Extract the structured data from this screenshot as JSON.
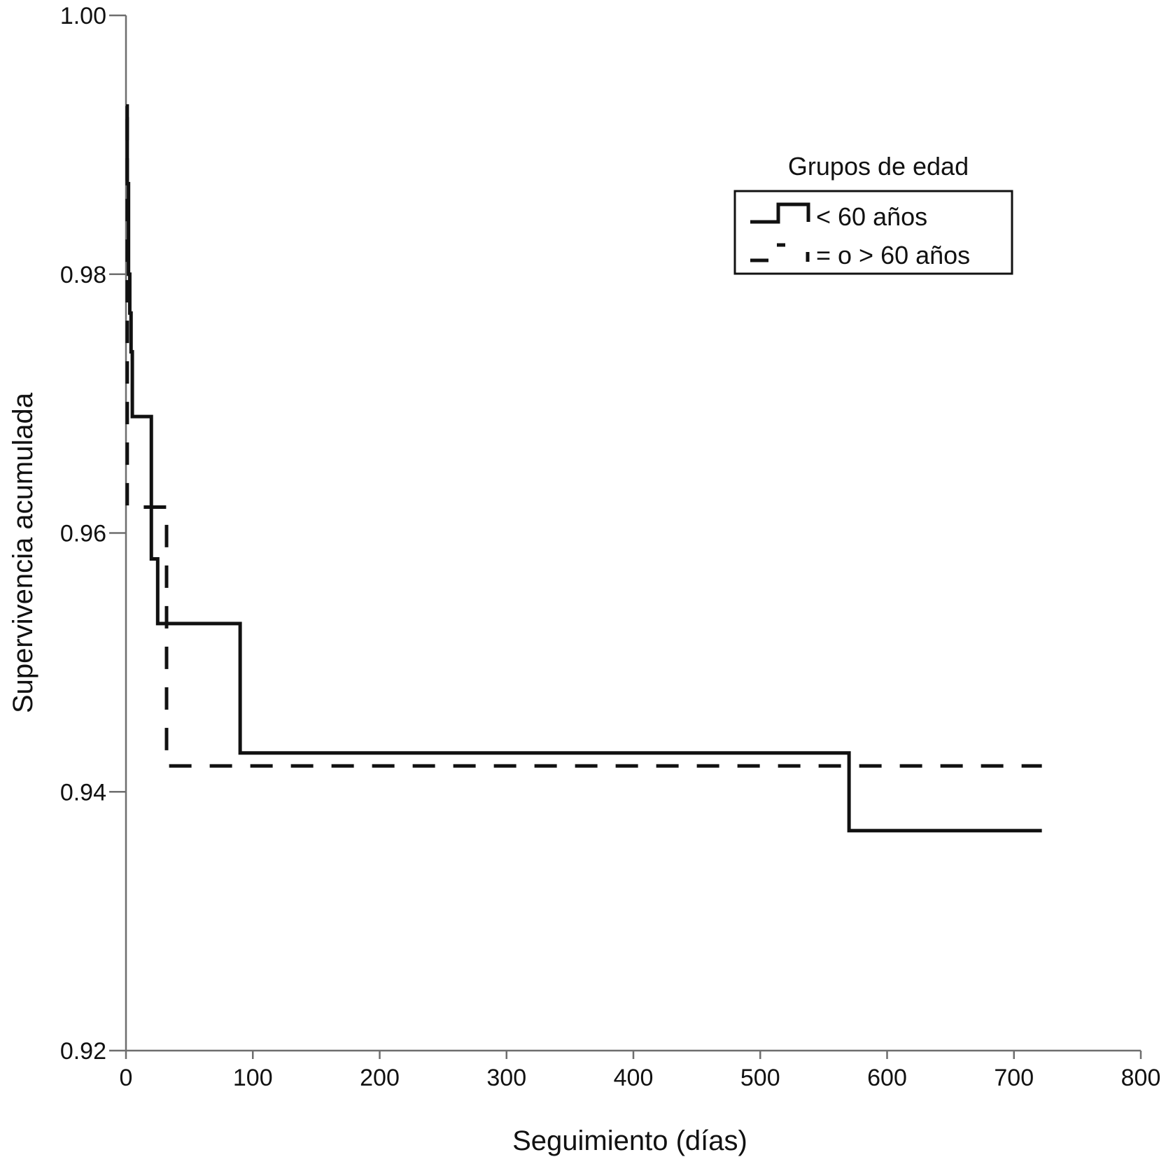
{
  "chart_data": {
    "type": "line",
    "step": true,
    "xlabel": "Seguimiento (días)",
    "ylabel": "Supervivencia acumulada",
    "xlim": [
      0,
      800
    ],
    "ylim": [
      0.92,
      1.0
    ],
    "x_ticks": [
      0,
      100,
      200,
      300,
      400,
      500,
      600,
      700,
      800
    ],
    "y_ticks": [
      0.92,
      0.94,
      0.96,
      0.98,
      1.0
    ],
    "x_tick_labels": [
      "0",
      "100",
      "200",
      "300",
      "400",
      "500",
      "600",
      "700",
      "800"
    ],
    "y_tick_labels": [
      "0.92",
      "0.94",
      "0.96",
      "0.98",
      "1.00"
    ],
    "grid": false,
    "legend": {
      "title": "Grupos de edad",
      "placement": "top-right"
    },
    "series": [
      {
        "name": "< 60 años",
        "style": "solid",
        "x": [
          0,
          1,
          2,
          3,
          4,
          5,
          20,
          25,
          90,
          570,
          722
        ],
        "y": [
          0.993,
          0.987,
          0.98,
          0.977,
          0.974,
          0.969,
          0.958,
          0.953,
          0.943,
          0.937,
          0.937
        ]
      },
      {
        "name": "= o > 60 años",
        "style": "dashed",
        "x": [
          0,
          1,
          32,
          722
        ],
        "y": [
          0.992,
          0.962,
          0.942,
          0.942
        ]
      }
    ]
  }
}
